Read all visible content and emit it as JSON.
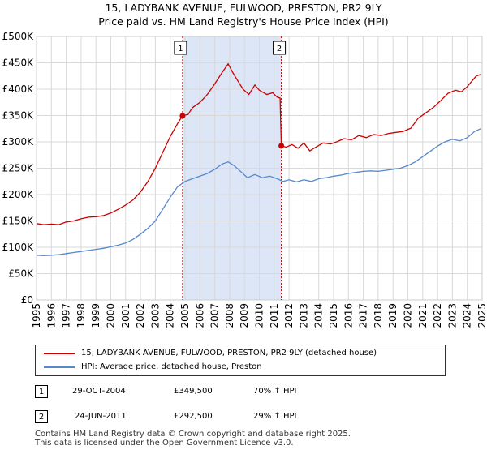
{
  "title": "15, LADYBANK AVENUE, FULWOOD, PRESTON, PR2 9LY",
  "subtitle": "Price paid vs. HM Land Registry's House Price Index (HPI)",
  "colors": {
    "property": "#cc0000",
    "hpi": "#5588cc",
    "shade": "#dde6f7",
    "grid": "#d9d9d9",
    "event_line": "#cc0000"
  },
  "chart_data": {
    "type": "line",
    "xlim": [
      1995,
      2025
    ],
    "ylim": [
      0,
      500000
    ],
    "x_ticks": [
      1995,
      1996,
      1997,
      1998,
      1999,
      2000,
      2001,
      2002,
      2003,
      2004,
      2005,
      2006,
      2007,
      2008,
      2009,
      2010,
      2011,
      2012,
      2013,
      2014,
      2015,
      2016,
      2017,
      2018,
      2019,
      2020,
      2021,
      2022,
      2023,
      2024,
      2025
    ],
    "y_ticks": [
      {
        "value": 0,
        "label": "£0"
      },
      {
        "value": 50000,
        "label": "£50K"
      },
      {
        "value": 100000,
        "label": "£100K"
      },
      {
        "value": 150000,
        "label": "£150K"
      },
      {
        "value": 200000,
        "label": "£200K"
      },
      {
        "value": 250000,
        "label": "£250K"
      },
      {
        "value": 300000,
        "label": "£300K"
      },
      {
        "value": 350000,
        "label": "£350K"
      },
      {
        "value": 400000,
        "label": "£400K"
      },
      {
        "value": 450000,
        "label": "£450K"
      },
      {
        "value": 500000,
        "label": "£500K"
      }
    ],
    "shaded_range": [
      2004.83,
      2011.48
    ],
    "series": [
      {
        "name": "15, LADYBANK AVENUE, FULWOOD, PRESTON, PR2 9LY (detached house)",
        "color": "#cc0000",
        "points": [
          [
            1995.0,
            145000
          ],
          [
            1995.5,
            143000
          ],
          [
            1996.0,
            144000
          ],
          [
            1996.5,
            143000
          ],
          [
            1997.0,
            148000
          ],
          [
            1997.5,
            150000
          ],
          [
            1998.0,
            154000
          ],
          [
            1998.5,
            157000
          ],
          [
            1999.0,
            158000
          ],
          [
            1999.5,
            160000
          ],
          [
            2000.0,
            165000
          ],
          [
            2000.5,
            172000
          ],
          [
            2001.0,
            180000
          ],
          [
            2001.5,
            190000
          ],
          [
            2002.0,
            205000
          ],
          [
            2002.5,
            225000
          ],
          [
            2003.0,
            250000
          ],
          [
            2003.5,
            280000
          ],
          [
            2004.0,
            310000
          ],
          [
            2004.5,
            335000
          ],
          [
            2004.83,
            349500
          ],
          [
            2005.2,
            352000
          ],
          [
            2005.5,
            365000
          ],
          [
            2006.0,
            375000
          ],
          [
            2006.5,
            390000
          ],
          [
            2007.0,
            410000
          ],
          [
            2007.5,
            432000
          ],
          [
            2007.9,
            448000
          ],
          [
            2008.2,
            432000
          ],
          [
            2008.5,
            418000
          ],
          [
            2008.9,
            400000
          ],
          [
            2009.3,
            390000
          ],
          [
            2009.7,
            408000
          ],
          [
            2010.0,
            398000
          ],
          [
            2010.5,
            390000
          ],
          [
            2010.9,
            393000
          ],
          [
            2011.2,
            385000
          ],
          [
            2011.4,
            383000
          ],
          [
            2011.48,
            292500
          ],
          [
            2011.8,
            290000
          ],
          [
            2012.2,
            295000
          ],
          [
            2012.6,
            288000
          ],
          [
            2013.0,
            298000
          ],
          [
            2013.4,
            283000
          ],
          [
            2013.8,
            290000
          ],
          [
            2014.3,
            298000
          ],
          [
            2014.8,
            296000
          ],
          [
            2015.2,
            300000
          ],
          [
            2015.7,
            306000
          ],
          [
            2016.2,
            304000
          ],
          [
            2016.7,
            312000
          ],
          [
            2017.2,
            308000
          ],
          [
            2017.7,
            314000
          ],
          [
            2018.2,
            312000
          ],
          [
            2018.7,
            316000
          ],
          [
            2019.2,
            318000
          ],
          [
            2019.7,
            320000
          ],
          [
            2020.2,
            326000
          ],
          [
            2020.7,
            345000
          ],
          [
            2021.2,
            355000
          ],
          [
            2021.7,
            365000
          ],
          [
            2022.2,
            378000
          ],
          [
            2022.7,
            392000
          ],
          [
            2023.2,
            398000
          ],
          [
            2023.6,
            395000
          ],
          [
            2024.0,
            405000
          ],
          [
            2024.3,
            415000
          ],
          [
            2024.6,
            425000
          ],
          [
            2024.9,
            428000
          ]
        ]
      },
      {
        "name": "HPI: Average price, detached house, Preston",
        "color": "#5588cc",
        "points": [
          [
            1995.0,
            85000
          ],
          [
            1995.5,
            84000
          ],
          [
            1996.0,
            85000
          ],
          [
            1996.5,
            86000
          ],
          [
            1997.0,
            88000
          ],
          [
            1997.5,
            90000
          ],
          [
            1998.0,
            92000
          ],
          [
            1998.5,
            94000
          ],
          [
            1999.0,
            96000
          ],
          [
            1999.5,
            98000
          ],
          [
            2000.0,
            101000
          ],
          [
            2000.5,
            104000
          ],
          [
            2001.0,
            108000
          ],
          [
            2001.5,
            115000
          ],
          [
            2002.0,
            125000
          ],
          [
            2002.5,
            136000
          ],
          [
            2003.0,
            150000
          ],
          [
            2003.5,
            172000
          ],
          [
            2004.0,
            195000
          ],
          [
            2004.5,
            215000
          ],
          [
            2005.0,
            225000
          ],
          [
            2005.5,
            230000
          ],
          [
            2006.0,
            235000
          ],
          [
            2006.5,
            240000
          ],
          [
            2007.0,
            248000
          ],
          [
            2007.5,
            258000
          ],
          [
            2007.9,
            262000
          ],
          [
            2008.3,
            255000
          ],
          [
            2008.7,
            245000
          ],
          [
            2009.2,
            232000
          ],
          [
            2009.7,
            238000
          ],
          [
            2010.2,
            232000
          ],
          [
            2010.7,
            235000
          ],
          [
            2011.2,
            230000
          ],
          [
            2011.6,
            225000
          ],
          [
            2012.0,
            228000
          ],
          [
            2012.5,
            224000
          ],
          [
            2013.0,
            228000
          ],
          [
            2013.5,
            225000
          ],
          [
            2014.0,
            230000
          ],
          [
            2014.5,
            232000
          ],
          [
            2015.0,
            235000
          ],
          [
            2015.5,
            237000
          ],
          [
            2016.0,
            240000
          ],
          [
            2016.5,
            242000
          ],
          [
            2017.0,
            244000
          ],
          [
            2017.5,
            245000
          ],
          [
            2018.0,
            244000
          ],
          [
            2018.5,
            246000
          ],
          [
            2019.0,
            248000
          ],
          [
            2019.5,
            250000
          ],
          [
            2020.0,
            255000
          ],
          [
            2020.5,
            262000
          ],
          [
            2021.0,
            272000
          ],
          [
            2021.5,
            282000
          ],
          [
            2022.0,
            292000
          ],
          [
            2022.5,
            300000
          ],
          [
            2023.0,
            305000
          ],
          [
            2023.5,
            302000
          ],
          [
            2024.0,
            308000
          ],
          [
            2024.5,
            320000
          ],
          [
            2024.9,
            325000
          ]
        ]
      }
    ],
    "events": [
      {
        "label": "1",
        "x": 2004.83,
        "price": 349500
      },
      {
        "label": "2",
        "x": 2011.48,
        "price": 292500
      }
    ]
  },
  "legend": {
    "property": "15, LADYBANK AVENUE, FULWOOD, PRESTON, PR2 9LY (detached house)",
    "hpi": "HPI: Average price, detached house, Preston"
  },
  "transactions": [
    {
      "num": "1",
      "date": "29-OCT-2004",
      "price": "£349,500",
      "hpi": "70% ↑ HPI"
    },
    {
      "num": "2",
      "date": "24-JUN-2011",
      "price": "£292,500",
      "hpi": "29% ↑ HPI"
    }
  ],
  "footer": {
    "line1": "Contains HM Land Registry data © Crown copyright and database right 2025.",
    "line2": "This data is licensed under the Open Government Licence v3.0."
  }
}
